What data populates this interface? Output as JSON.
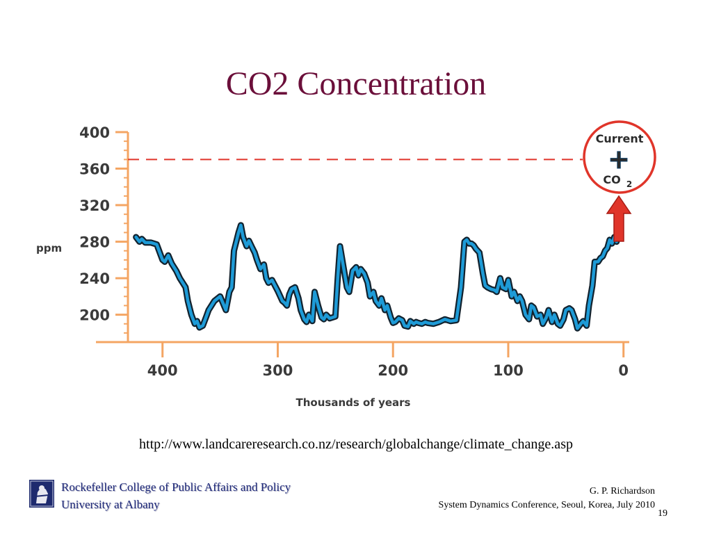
{
  "slide": {
    "title": "CO2 Concentration",
    "source_url": "http://www.landcareresearch.co.nz/research/globalchange/climate_change.asp",
    "institution_line1": "Rockefeller College of Public Affairs and Policy",
    "institution_line2": "University at Albany",
    "author": "G. P. Richardson",
    "conference": "System Dynamics Conference, Seoul, Korea, July 2010",
    "page_number": "19"
  },
  "chart_data": {
    "type": "line",
    "title": "",
    "xlabel": "Thousands of years",
    "ylabel": "ppm",
    "x_reversed": true,
    "xlim": [
      430,
      -5
    ],
    "ylim": [
      170,
      400
    ],
    "x_ticks": [
      400,
      300,
      200,
      100,
      0
    ],
    "y_ticks": [
      200,
      240,
      280,
      320,
      360,
      400
    ],
    "grid": false,
    "series": [
      {
        "name": "",
        "color": "#1e9bd7",
        "x": [
          423,
          420,
          418,
          415,
          410,
          405,
          400,
          398,
          395,
          392,
          388,
          385,
          380,
          378,
          375,
          372,
          370,
          368,
          365,
          362,
          360,
          355,
          350,
          345,
          342,
          340,
          338,
          336,
          334,
          332,
          330,
          327,
          325,
          322,
          320,
          318,
          315,
          312,
          310,
          308,
          305,
          300,
          296,
          294,
          292,
          290,
          288,
          285,
          282,
          280,
          277,
          275,
          273,
          270,
          268,
          265,
          262,
          260,
          258,
          255,
          250,
          248,
          246,
          244,
          242,
          240,
          238,
          235,
          232,
          230,
          228,
          225,
          222,
          220,
          217,
          215,
          212,
          210,
          207,
          205,
          202,
          200,
          198,
          195,
          192,
          190,
          187,
          185,
          182,
          180,
          178,
          175,
          172,
          170,
          165,
          160,
          155,
          150,
          145,
          141,
          138,
          136,
          134,
          132,
          130,
          128,
          125,
          122,
          120,
          118,
          115,
          112,
          110,
          107,
          105,
          102,
          100,
          97,
          95,
          92,
          90,
          88,
          85,
          82,
          80,
          78,
          75,
          72,
          70,
          67,
          65,
          62,
          60,
          57,
          55,
          52,
          50,
          47,
          45,
          42,
          40,
          37,
          35,
          32,
          30,
          27,
          25,
          22,
          20,
          18,
          16,
          14,
          12,
          10,
          8,
          6
        ],
        "y": [
          285,
          280,
          283,
          279,
          279,
          277,
          260,
          258,
          265,
          256,
          248,
          240,
          230,
          215,
          200,
          190,
          193,
          186,
          188,
          198,
          205,
          215,
          220,
          205,
          225,
          230,
          270,
          280,
          290,
          298,
          285,
          275,
          281,
          273,
          268,
          260,
          250,
          255,
          240,
          235,
          238,
          226,
          215,
          213,
          210,
          222,
          228,
          230,
          218,
          205,
          195,
          192,
          200,
          193,
          225,
          210,
          197,
          195,
          200,
          196,
          198,
          240,
          275,
          260,
          245,
          230,
          225,
          248,
          252,
          243,
          250,
          245,
          235,
          220,
          225,
          215,
          210,
          218,
          205,
          210,
          197,
          191,
          192,
          196,
          194,
          188,
          187,
          193,
          190,
          192,
          191,
          190,
          192,
          191,
          190,
          192,
          195,
          193,
          194,
          230,
          280,
          282,
          278,
          278,
          276,
          272,
          268,
          245,
          232,
          230,
          228,
          227,
          225,
          240,
          230,
          228,
          238,
          220,
          225,
          215,
          220,
          215,
          200,
          195,
          210,
          208,
          198,
          200,
          190,
          197,
          205,
          192,
          200,
          190,
          188,
          195,
          205,
          207,
          205,
          195,
          185,
          190,
          193,
          188,
          210,
          232,
          258,
          258,
          262,
          264,
          270,
          273,
          282,
          278,
          285,
          280
        ]
      }
    ],
    "reference_line": {
      "value": 370,
      "style": "dashed",
      "color": "#e0352a"
    },
    "annotation": {
      "line1": "Current",
      "symbol": "+",
      "line2_main": "CO",
      "line2_sub": "2",
      "circle_color": "#e0352a",
      "arrow_color": "#e0352a"
    },
    "axis_color": "#f4a563"
  }
}
